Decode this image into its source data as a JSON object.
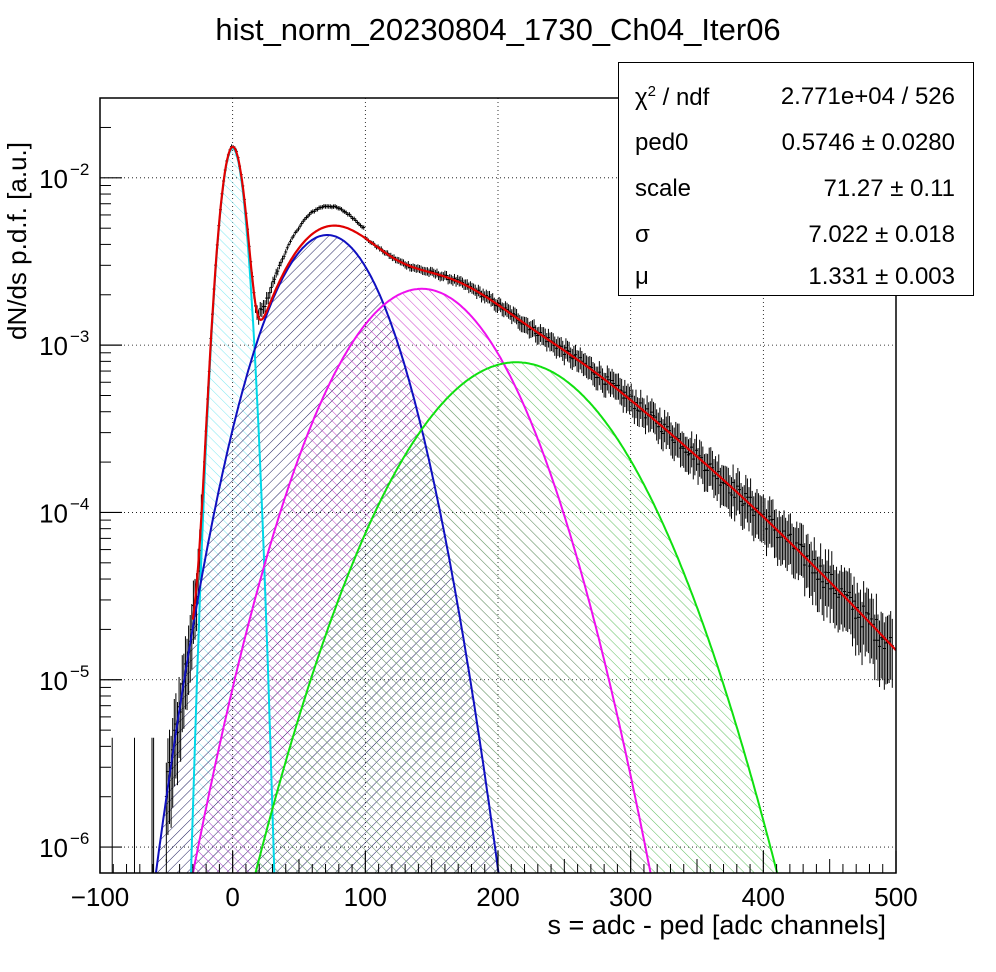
{
  "chart_data": {
    "type": "histogram-fit",
    "title": "hist_norm_20230804_1730_Ch04_Iter06",
    "xlabel": "s = adc - ped [adc channels]",
    "ylabel": "dN/ds p.d.f. [a.u.]",
    "xlim": [
      -100,
      500
    ],
    "ylim": [
      7e-07,
      0.03
    ],
    "yscale": "log",
    "grid": true,
    "x_ticks": [
      "−100",
      "0",
      "100",
      "200",
      "300",
      "400",
      "500"
    ],
    "y_ticks": [
      {
        "base": "10",
        "exp": "−2",
        "value": 0.01
      },
      {
        "base": "10",
        "exp": "−3",
        "value": 0.001
      },
      {
        "base": "10",
        "exp": "−4",
        "value": 0.0001
      },
      {
        "base": "10",
        "exp": "−5",
        "value": 1e-05
      },
      {
        "base": "10",
        "exp": "−6",
        "value": 1e-06
      }
    ],
    "fit_params": {
      "ped0": 0.5746,
      "scale": 71.27,
      "sigma": 7.022,
      "mu": 1.331
    },
    "components": [
      {
        "n": 0,
        "color": "#00d8e8",
        "hatch": "#7fe8f2"
      },
      {
        "n": 1,
        "color": "#1010c0",
        "hatch": "#202060"
      },
      {
        "n": 2,
        "color": "#ee10ee",
        "hatch": "#cc40cc"
      },
      {
        "n": 3,
        "color": "#10e010",
        "hatch": "#60c060"
      }
    ],
    "total_fit_color": "#e00000",
    "data_color": "#000000"
  },
  "stats": [
    {
      "label_main": "χ",
      "label_sup": "2",
      "label_rest": " / ndf",
      "value": "2.771e+04 / 526"
    },
    {
      "label_main": "ped0",
      "label_sup": "",
      "label_rest": "",
      "value": "0.5746 ± 0.0280"
    },
    {
      "label_main": "scale",
      "label_sup": "",
      "label_rest": "",
      "value": "71.27 ± 0.11"
    },
    {
      "label_main": "σ",
      "label_sup": "",
      "label_rest": "",
      "value": "7.022 ± 0.018"
    },
    {
      "label_main": "μ",
      "label_sup": "",
      "label_rest": "",
      "value": "1.331 ± 0.003"
    }
  ]
}
